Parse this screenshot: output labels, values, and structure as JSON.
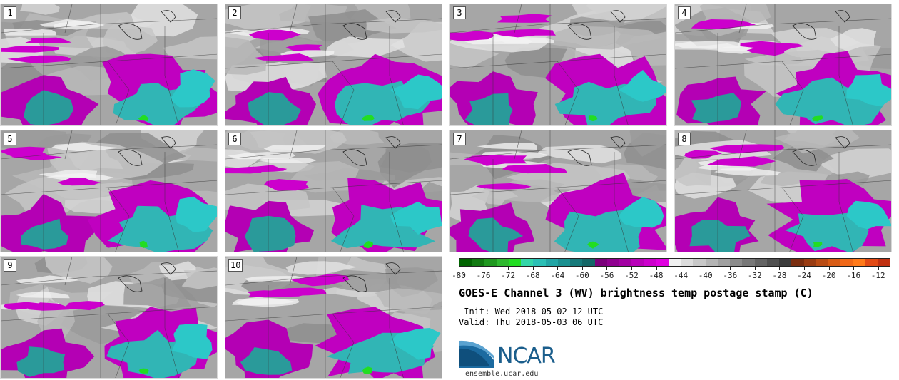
{
  "panels": [
    {
      "label": "1"
    },
    {
      "label": "2"
    },
    {
      "label": "3"
    },
    {
      "label": "4"
    },
    {
      "label": "5"
    },
    {
      "label": "6"
    },
    {
      "label": "7"
    },
    {
      "label": "8"
    },
    {
      "label": "9"
    },
    {
      "label": "10"
    }
  ],
  "colorbar": {
    "colors": [
      "#006400",
      "#117a11",
      "#1f981f",
      "#2eb82e",
      "#22dd22",
      "#33d6a8",
      "#2bbfb5",
      "#21a5a5",
      "#1a9090",
      "#177a7a",
      "#136666",
      "#7a007a",
      "#8f008f",
      "#a300a3",
      "#b800b8",
      "#cc00cc",
      "#e000e0",
      "#f0f0f0",
      "#dcdcdc",
      "#c8c8c8",
      "#b4b4b4",
      "#a0a0a0",
      "#8c8c8c",
      "#787878",
      "#646464",
      "#505050",
      "#3c3c3c",
      "#7a2e10",
      "#9a3c12",
      "#ba4c14",
      "#d85c16",
      "#f06818",
      "#ff7a1a",
      "#e24a14",
      "#c03010"
    ],
    "ticks": [
      "-80",
      "-76",
      "-72",
      "-68",
      "-64",
      "-60",
      "-56",
      "-52",
      "-48",
      "-44",
      "-40",
      "-36",
      "-32",
      "-28",
      "-24",
      "-20",
      "-16",
      "-12"
    ],
    "min": -80,
    "max": -10
  },
  "title": "GOES-E Channel 3 (WV) brightness temp postage stamp (C)",
  "init_line": " Init: Wed 2018-05-02 12 UTC",
  "valid_line": "Valid: Thu 2018-05-03 06 UTC",
  "logo": {
    "text": "NCAR",
    "url": "ensemble.ucar.edu"
  }
}
